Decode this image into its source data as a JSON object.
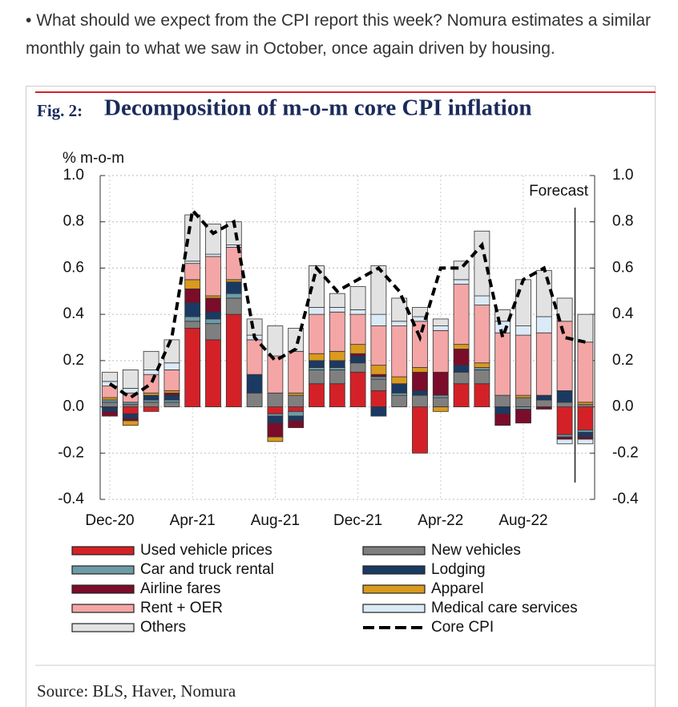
{
  "bullet_text": "What should we expect from the CPI report this week? Nomura estimates a similar monthly gain to what we saw in October, once again driven by housing.",
  "chart_data": {
    "type": "stacked-bar",
    "fig_label": "Fig. 2:",
    "title": "Decomposition of m-o-m core CPI inflation",
    "y_axis_label": "% m-o-m",
    "annotation": "Forecast",
    "source": "Source: BLS, Haver, Nomura",
    "categories": [
      "Dec-20",
      null,
      null,
      null,
      "Apr-21",
      null,
      null,
      null,
      "Aug-21",
      null,
      null,
      null,
      "Dec-21",
      null,
      null,
      null,
      "Apr-22",
      null,
      null,
      null,
      "Aug-22",
      null,
      null,
      null
    ],
    "ylim": [
      -0.4,
      1.0
    ],
    "yticks": [
      {
        "value": -0.4,
        "label": "-0.4"
      },
      {
        "value": -0.2,
        "label": "-0.2"
      },
      {
        "value": 0,
        "label": "0.0"
      },
      0.2,
      0.4,
      0.6,
      0.8,
      {
        "value": 1,
        "label": "1.0"
      }
    ],
    "grid": true,
    "series": [
      {
        "name": "Used vehicle prices",
        "color": "#d42127",
        "values": [
          0.0,
          -0.03,
          -0.02,
          0.0,
          0.34,
          0.29,
          0.4,
          0.0,
          -0.03,
          -0.02,
          0.1,
          0.1,
          0.15,
          0.07,
          0.0,
          -0.2,
          0.0,
          0.1,
          0.1,
          0.0,
          0.0,
          0.0,
          -0.12,
          -0.1
        ]
      },
      {
        "name": "New vehicles",
        "color": "#7f7f7f",
        "values": [
          0.02,
          0.01,
          0.02,
          0.02,
          0.03,
          0.07,
          0.07,
          0.06,
          0.06,
          0.05,
          0.06,
          0.06,
          0.04,
          0.05,
          0.05,
          0.05,
          0.04,
          0.05,
          0.06,
          0.05,
          0.04,
          0.03,
          0.02,
          0.01
        ]
      },
      {
        "name": "Car and truck rental",
        "color": "#6d9ba8",
        "values": [
          0.01,
          0.01,
          0.01,
          0.01,
          0.02,
          0.02,
          0.02,
          0.0,
          -0.01,
          -0.02,
          0.01,
          0.01,
          0.0,
          0.01,
          0.01,
          0.0,
          0.01,
          0.0,
          0.01,
          0.0,
          -0.01,
          0.0,
          -0.01,
          -0.01
        ]
      },
      {
        "name": "Lodging",
        "color": "#1a3a63",
        "values": [
          -0.02,
          -0.02,
          0.02,
          0.02,
          0.06,
          0.03,
          0.05,
          0.08,
          -0.03,
          -0.02,
          0.03,
          0.03,
          0.03,
          -0.04,
          0.04,
          0.02,
          0.0,
          0.03,
          0.0,
          -0.03,
          0.0,
          0.02,
          0.05,
          -0.02
        ]
      },
      {
        "name": "Airline fares",
        "color": "#7b0c2a",
        "values": [
          -0.02,
          -0.01,
          0.0,
          0.01,
          0.06,
          0.06,
          0.0,
          0.0,
          -0.06,
          -0.03,
          0.0,
          0.0,
          0.01,
          0.01,
          0.0,
          0.08,
          0.1,
          0.07,
          0.0,
          -0.05,
          -0.06,
          -0.01,
          -0.01,
          -0.01
        ]
      },
      {
        "name": "Apparel",
        "color": "#d99a1e",
        "values": [
          0.01,
          -0.02,
          0.01,
          0.01,
          0.04,
          0.01,
          0.01,
          0.0,
          -0.02,
          0.01,
          0.03,
          0.04,
          0.04,
          0.04,
          0.03,
          0.02,
          -0.02,
          0.02,
          0.02,
          0.0,
          0.01,
          0.0,
          0.0,
          0.01
        ]
      },
      {
        "name": "Rent + OER",
        "color": "#f4a6a6",
        "values": [
          0.05,
          0.04,
          0.08,
          0.09,
          0.07,
          0.17,
          0.14,
          0.15,
          0.16,
          0.18,
          0.17,
          0.17,
          0.13,
          0.17,
          0.22,
          0.2,
          0.18,
          0.26,
          0.25,
          0.27,
          0.26,
          0.27,
          0.3,
          0.26
        ]
      },
      {
        "name": "Medical care services",
        "color": "#dbeaf7",
        "values": [
          0.02,
          0.02,
          0.02,
          0.03,
          0.01,
          0.01,
          0.01,
          0.02,
          0.0,
          0.0,
          0.03,
          0.02,
          0.02,
          0.05,
          0.02,
          0.02,
          0.02,
          0.02,
          0.04,
          0.05,
          0.04,
          0.07,
          -0.02,
          -0.02
        ]
      },
      {
        "name": "Others",
        "color": "#e2e2e2",
        "values": [
          0.04,
          0.08,
          0.08,
          0.1,
          0.2,
          0.13,
          0.1,
          0.07,
          0.13,
          0.1,
          0.18,
          0.06,
          0.1,
          0.21,
          0.1,
          0.04,
          0.03,
          0.08,
          0.28,
          0.05,
          0.2,
          0.2,
          0.1,
          0.12
        ]
      }
    ],
    "line": {
      "name": "Core CPI",
      "color": "#000000",
      "values": [
        0.1,
        0.04,
        0.1,
        0.3,
        0.85,
        0.75,
        0.8,
        0.3,
        0.2,
        0.25,
        0.6,
        0.5,
        0.55,
        0.6,
        0.5,
        0.3,
        0.6,
        0.6,
        0.7,
        0.3,
        0.55,
        0.6,
        0.3,
        0.28
      ]
    }
  }
}
